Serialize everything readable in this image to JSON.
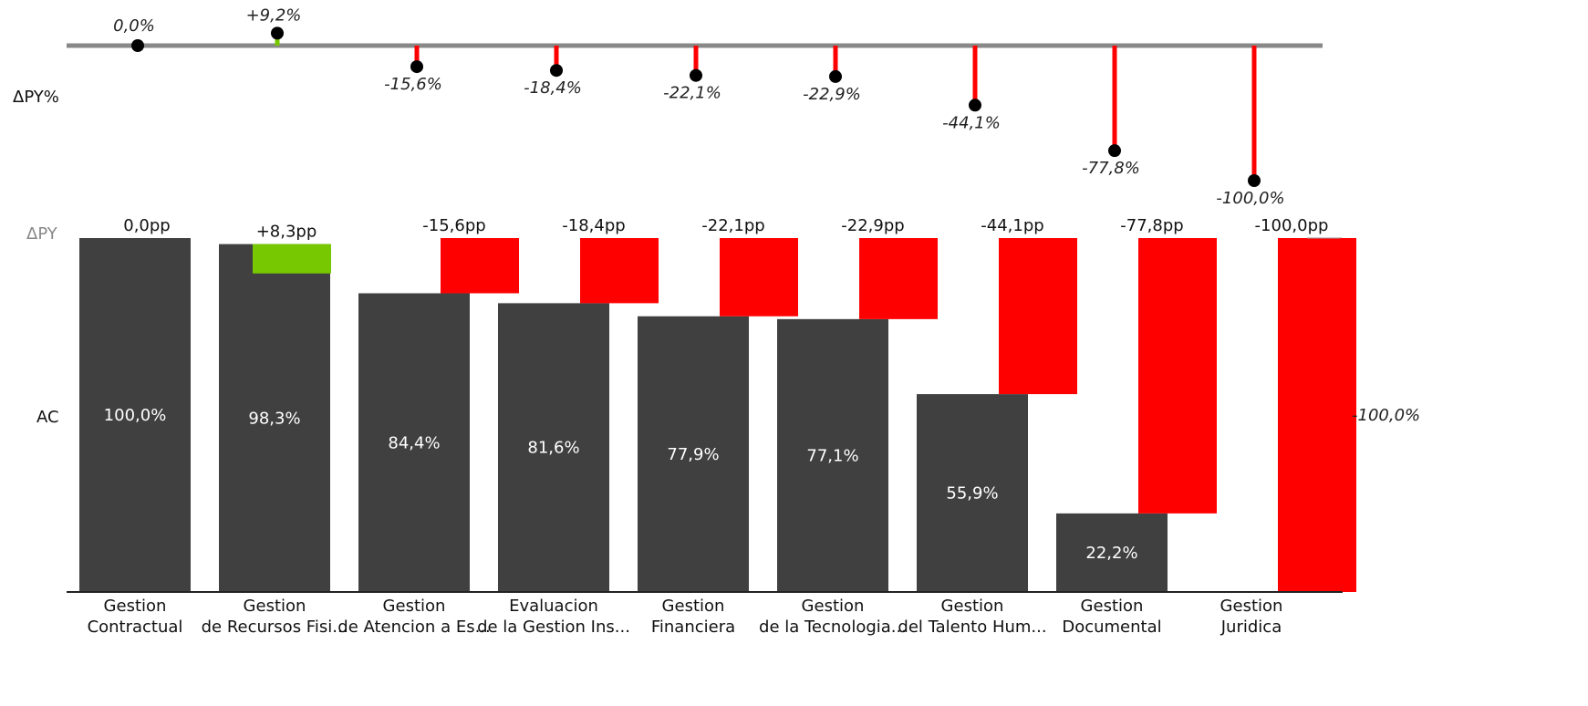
{
  "chart_data": {
    "type": "bar",
    "row_labels": {
      "delta_py_pct": "ΔPY%",
      "delta_py": "ΔPY",
      "ac": "AC"
    },
    "categories": [
      [
        "Gestion",
        "Contractual"
      ],
      [
        "Gestion",
        "de Recursos Fisi..."
      ],
      [
        "Gestion",
        "de Atencion a Es..."
      ],
      [
        "Evaluacion",
        "de la Gestion Ins..."
      ],
      [
        "Gestion",
        "Financiera"
      ],
      [
        "Gestion",
        "de la Tecnologia..."
      ],
      [
        "Gestion",
        "del Talento Hum..."
      ],
      [
        "Gestion",
        "Documental"
      ],
      [
        "Gestion",
        "Juridica"
      ]
    ],
    "ac_values": [
      100.0,
      98.3,
      84.4,
      81.6,
      77.9,
      77.1,
      55.9,
      22.2,
      0.0
    ],
    "ac_labels": [
      "100,0%",
      "98,3%",
      "84,4%",
      "81,6%",
      "77,9%",
      "77,1%",
      "55,9%",
      "22,2%",
      ""
    ],
    "py_values": [
      100.0,
      90.0,
      100.0,
      100.0,
      100.0,
      100.0,
      100.0,
      100.0,
      100.0
    ],
    "delta_pp_values": [
      0.0,
      8.3,
      -15.6,
      -18.4,
      -22.1,
      -22.9,
      -44.1,
      -77.8,
      -100.0
    ],
    "delta_pp_labels": [
      "0,0pp",
      "+8,3pp",
      "-15,6pp",
      "-18,4pp",
      "-22,1pp",
      "-22,9pp",
      "-44,1pp",
      "-77,8pp",
      "-100,0pp"
    ],
    "delta_pct_values": [
      0.0,
      9.2,
      -15.6,
      -18.4,
      -22.1,
      -22.9,
      -44.1,
      -77.8,
      -100.0
    ],
    "delta_pct_labels": [
      "0,0%",
      "+9,2%",
      "-15,6%",
      "-18,4%",
      "-22,1%",
      "-22,9%",
      "-44,1%",
      "-77,8%",
      "-100,0%"
    ],
    "total_label": "-100,0%",
    "ylim": [
      0,
      100
    ],
    "colors": {
      "ac": "#404040",
      "positive": "#77c800",
      "negative": "#ff0000",
      "baseline": "#888888",
      "marker": "#000000"
    }
  }
}
